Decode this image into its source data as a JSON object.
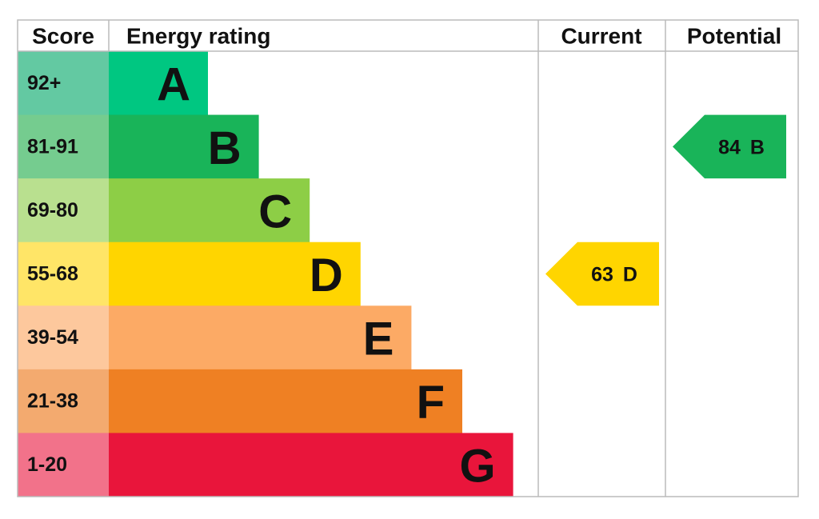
{
  "header": {
    "score": "Score",
    "rating": "Energy rating",
    "current": "Current",
    "potential": "Potential"
  },
  "bands": [
    {
      "score": "92+",
      "letter": "A",
      "color": "#00c781",
      "score_color": "#63c9a2"
    },
    {
      "score": "81-91",
      "letter": "B",
      "color": "#19b459",
      "score_color": "#75cc8f"
    },
    {
      "score": "69-80",
      "letter": "C",
      "color": "#8dce46",
      "score_color": "#b9e08f"
    },
    {
      "score": "55-68",
      "letter": "D",
      "color": "#ffd500",
      "score_color": "#ffe567"
    },
    {
      "score": "39-54",
      "letter": "E",
      "color": "#fcaa65",
      "score_color": "#fdc89d"
    },
    {
      "score": "21-38",
      "letter": "F",
      "color": "#ef8023",
      "score_color": "#f3aa6f"
    },
    {
      "score": "1-20",
      "letter": "G",
      "color": "#e9153b",
      "score_color": "#f2728a"
    }
  ],
  "current": {
    "value": 63,
    "letter": "D"
  },
  "potential": {
    "value": 84,
    "letter": "B"
  }
}
